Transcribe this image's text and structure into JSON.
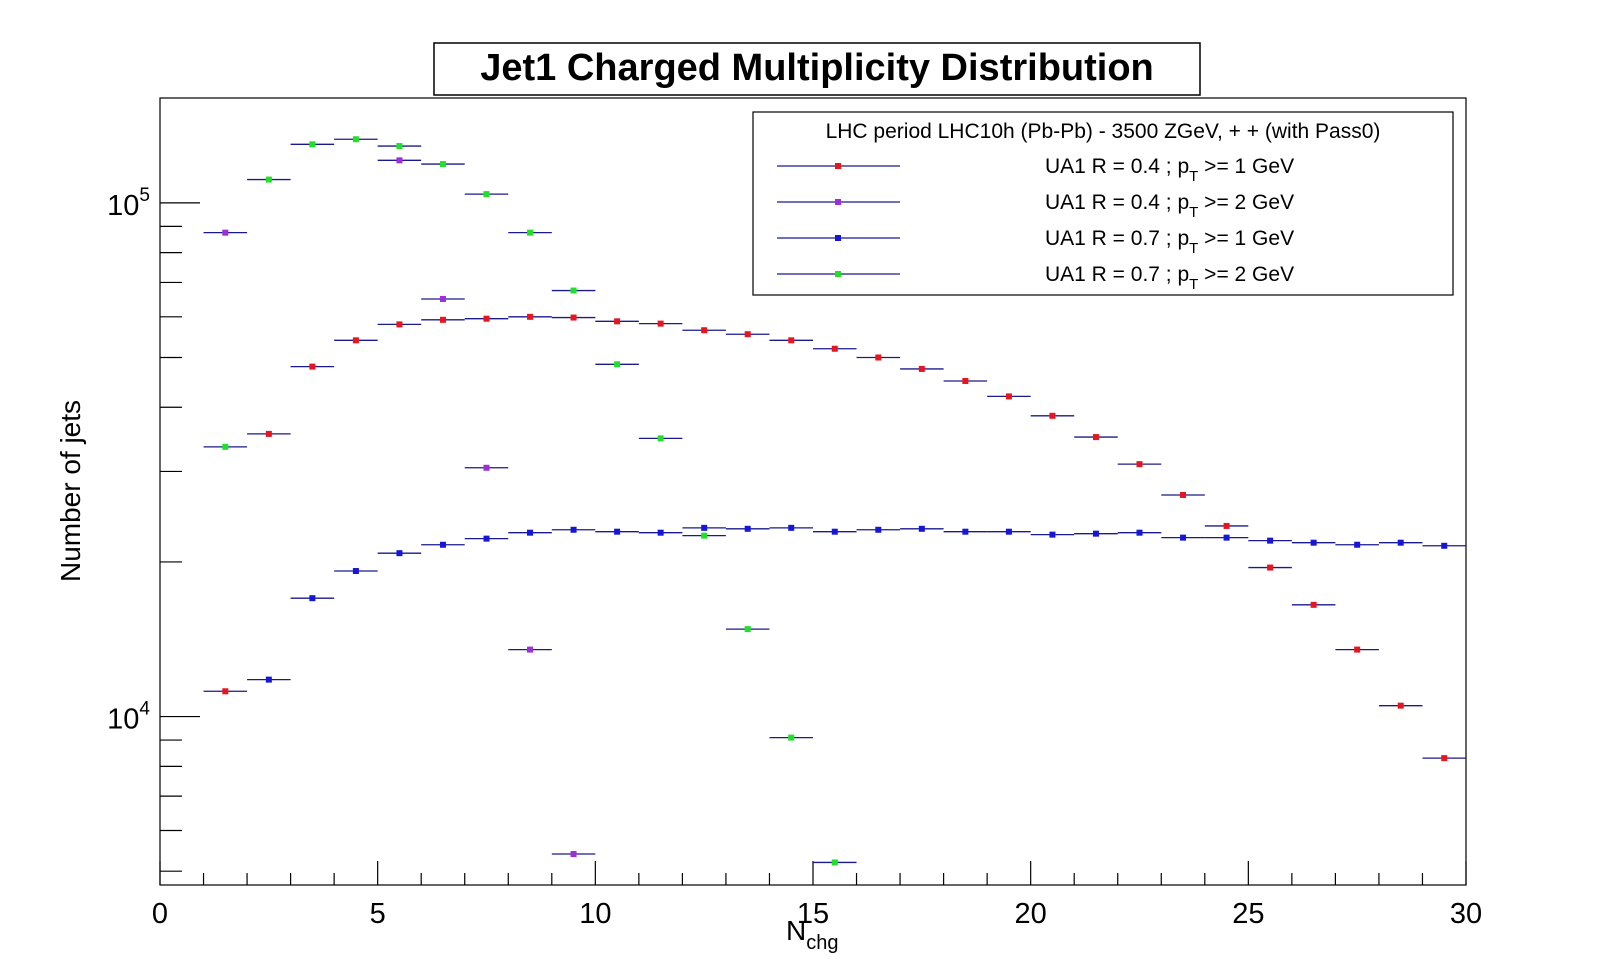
{
  "chart_data": {
    "type": "scatter",
    "title": "Jet1 Charged Multiplicity Distribution",
    "xlabel": "N",
    "xlabel_sub": "chg",
    "ylabel": "Number of jets",
    "xlim": [
      0,
      30
    ],
    "ylim": [
      4700,
      160000
    ],
    "yscale": "log",
    "x_ticks": [
      "0",
      "5",
      "10",
      "15",
      "20",
      "25",
      "30"
    ],
    "y_ticks": [
      {
        "value": 10000,
        "base": "10",
        "exp": "4"
      },
      {
        "value": 100000,
        "base": "10",
        "exp": "5"
      }
    ],
    "grid": false,
    "legend": {
      "position": "top-right",
      "header": "LHC period LHC10h (Pb-Pb) - 3500 ZGeV, + + (with Pass0)"
    },
    "series": [
      {
        "label_pre": "UA1 R = 0.4 ; p",
        "label_sub": "T",
        "label_post": " >= 1 GeV",
        "color": "#e8141e",
        "points": [
          [
            1.5,
            11200
          ],
          [
            2.5,
            35500
          ],
          [
            3.5,
            48000
          ],
          [
            4.5,
            54000
          ],
          [
            5.5,
            58000
          ],
          [
            6.5,
            59200
          ],
          [
            7.5,
            59500
          ],
          [
            8.5,
            60000
          ],
          [
            9.5,
            59800
          ],
          [
            10.5,
            58800
          ],
          [
            11.5,
            58200
          ],
          [
            12.5,
            56500
          ],
          [
            13.5,
            55500
          ],
          [
            14.5,
            54000
          ],
          [
            15.5,
            52000
          ],
          [
            16.5,
            50000
          ],
          [
            17.5,
            47500
          ],
          [
            18.5,
            45000
          ],
          [
            19.5,
            42000
          ],
          [
            20.5,
            38500
          ],
          [
            21.5,
            35000
          ],
          [
            22.5,
            31000
          ],
          [
            23.5,
            27000
          ],
          [
            24.5,
            23500
          ],
          [
            25.5,
            19500
          ],
          [
            26.5,
            16500
          ],
          [
            27.5,
            13500
          ],
          [
            28.5,
            10500
          ],
          [
            29.5,
            8300
          ]
        ]
      },
      {
        "label_pre": "UA1 R = 0.4 ; p",
        "label_sub": "T",
        "label_post": " >= 2 GeV",
        "color": "#9b30d9",
        "points": [
          [
            1.5,
            87500
          ],
          [
            5.5,
            121000
          ],
          [
            6.5,
            65000
          ],
          [
            7.5,
            30500
          ],
          [
            8.5,
            13500
          ],
          [
            9.5,
            5400
          ]
        ]
      },
      {
        "label_pre": "UA1 R = 0.7 ; p",
        "label_sub": "T",
        "label_post": " >= 1 GeV",
        "color": "#1616d8",
        "points": [
          [
            2.5,
            11800
          ],
          [
            3.5,
            17000
          ],
          [
            4.5,
            19200
          ],
          [
            5.5,
            20800
          ],
          [
            6.5,
            21600
          ],
          [
            7.5,
            22200
          ],
          [
            8.5,
            22800
          ],
          [
            9.5,
            23100
          ],
          [
            10.5,
            22900
          ],
          [
            11.5,
            22800
          ],
          [
            12.5,
            23300
          ],
          [
            13.5,
            23200
          ],
          [
            14.5,
            23300
          ],
          [
            15.5,
            22900
          ],
          [
            16.5,
            23100
          ],
          [
            17.5,
            23200
          ],
          [
            18.5,
            22900
          ],
          [
            19.5,
            22900
          ],
          [
            20.5,
            22600
          ],
          [
            21.5,
            22700
          ],
          [
            22.5,
            22800
          ],
          [
            23.5,
            22300
          ],
          [
            24.5,
            22300
          ],
          [
            25.5,
            22000
          ],
          [
            26.5,
            21800
          ],
          [
            27.5,
            21600
          ],
          [
            28.5,
            21800
          ],
          [
            29.5,
            21500
          ]
        ]
      },
      {
        "label_pre": "UA1 R = 0.7 ; p",
        "label_sub": "T",
        "label_post": " >= 2 GeV",
        "color": "#22e02a",
        "points": [
          [
            1.5,
            33500
          ],
          [
            2.5,
            111000
          ],
          [
            3.5,
            130000
          ],
          [
            4.5,
            133000
          ],
          [
            5.5,
            129000
          ],
          [
            6.5,
            119000
          ],
          [
            7.5,
            104000
          ],
          [
            8.5,
            87500
          ],
          [
            9.5,
            67500
          ],
          [
            10.5,
            48500
          ],
          [
            11.5,
            34800
          ],
          [
            12.5,
            22500
          ],
          [
            13.5,
            14800
          ],
          [
            14.5,
            9100
          ],
          [
            15.5,
            5200
          ]
        ]
      }
    ]
  }
}
